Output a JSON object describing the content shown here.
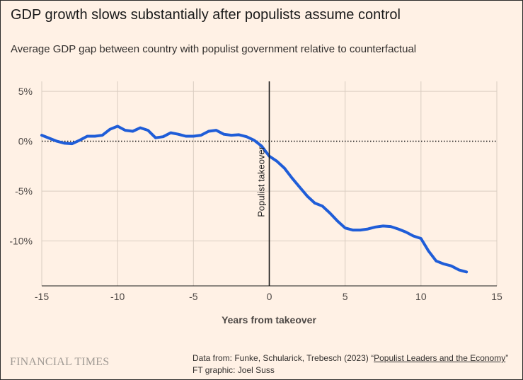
{
  "header": {
    "title": "GDP growth slows substantially after populists assume control",
    "subtitle": "Average GDP gap between country with populist government relative to counterfactual"
  },
  "footer": {
    "brand": "FINANCIAL TIMES",
    "source_prefix": "Data from: Funke, Schularick, Trebesch (2023) “",
    "source_link": "Populist Leaders and the Economy",
    "source_suffix": "”",
    "credit": "FT graphic: Joel Suss"
  },
  "colors": {
    "background": "#fff1e5",
    "series": "#1f5dd8",
    "grid": "#d9cdc1",
    "axis_text": "#4d4845"
  },
  "chart_data": {
    "type": "line",
    "title": "GDP growth slows substantially after populists assume control",
    "subtitle": "Average GDP gap between country with populist government relative to counterfactual",
    "xlabel": "Years from takeover",
    "ylabel": "",
    "xlim": [
      -15,
      15
    ],
    "ylim": [
      -14.5,
      6
    ],
    "x_ticks": [
      -15,
      -10,
      -5,
      0,
      5,
      10,
      15
    ],
    "x_tick_labels": [
      "-15",
      "-10",
      "-5",
      "0",
      "5",
      "10",
      "15"
    ],
    "y_ticks": [
      5,
      0,
      -5,
      -10
    ],
    "y_tick_labels": [
      "5%",
      "0%",
      "-5%",
      "-10%"
    ],
    "grid": true,
    "zero_line": "dotted",
    "annotation": {
      "label": "Populist takeover",
      "x": 0
    },
    "series": [
      {
        "values": [
          {
            "x": -15,
            "y": 0.6
          },
          {
            "x": -14.5,
            "y": 0.3
          },
          {
            "x": -14,
            "y": 0.0
          },
          {
            "x": -13.5,
            "y": -0.2
          },
          {
            "x": -13,
            "y": -0.25
          },
          {
            "x": -12.5,
            "y": 0.1
          },
          {
            "x": -12,
            "y": 0.5
          },
          {
            "x": -11.5,
            "y": 0.5
          },
          {
            "x": -11,
            "y": 0.6
          },
          {
            "x": -10.5,
            "y": 1.2
          },
          {
            "x": -10,
            "y": 1.5
          },
          {
            "x": -9.5,
            "y": 1.1
          },
          {
            "x": -9,
            "y": 1.0
          },
          {
            "x": -8.5,
            "y": 1.35
          },
          {
            "x": -8,
            "y": 1.1
          },
          {
            "x": -7.5,
            "y": 0.35
          },
          {
            "x": -7,
            "y": 0.45
          },
          {
            "x": -6.5,
            "y": 0.85
          },
          {
            "x": -6,
            "y": 0.7
          },
          {
            "x": -5.5,
            "y": 0.5
          },
          {
            "x": -5,
            "y": 0.5
          },
          {
            "x": -4.5,
            "y": 0.6
          },
          {
            "x": -4,
            "y": 1.0
          },
          {
            "x": -3.5,
            "y": 1.1
          },
          {
            "x": -3,
            "y": 0.7
          },
          {
            "x": -2.5,
            "y": 0.6
          },
          {
            "x": -2,
            "y": 0.65
          },
          {
            "x": -1.5,
            "y": 0.45
          },
          {
            "x": -1,
            "y": 0.1
          },
          {
            "x": -0.5,
            "y": -0.5
          },
          {
            "x": 0,
            "y": -1.5
          },
          {
            "x": 0.5,
            "y": -2.0
          },
          {
            "x": 1,
            "y": -2.7
          },
          {
            "x": 1.5,
            "y": -3.7
          },
          {
            "x": 2,
            "y": -4.6
          },
          {
            "x": 2.5,
            "y": -5.5
          },
          {
            "x": 3,
            "y": -6.2
          },
          {
            "x": 3.5,
            "y": -6.5
          },
          {
            "x": 4,
            "y": -7.2
          },
          {
            "x": 4.5,
            "y": -8.0
          },
          {
            "x": 5,
            "y": -8.7
          },
          {
            "x": 5.5,
            "y": -8.9
          },
          {
            "x": 6,
            "y": -8.9
          },
          {
            "x": 6.5,
            "y": -8.8
          },
          {
            "x": 7,
            "y": -8.6
          },
          {
            "x": 7.5,
            "y": -8.5
          },
          {
            "x": 8,
            "y": -8.55
          },
          {
            "x": 8.5,
            "y": -8.8
          },
          {
            "x": 9,
            "y": -9.1
          },
          {
            "x": 9.5,
            "y": -9.5
          },
          {
            "x": 10,
            "y": -9.75
          },
          {
            "x": 10.5,
            "y": -11.0
          },
          {
            "x": 11,
            "y": -12.0
          },
          {
            "x": 11.5,
            "y": -12.3
          },
          {
            "x": 12,
            "y": -12.5
          },
          {
            "x": 12.5,
            "y": -12.9
          },
          {
            "x": 13,
            "y": -13.1
          }
        ]
      }
    ]
  }
}
